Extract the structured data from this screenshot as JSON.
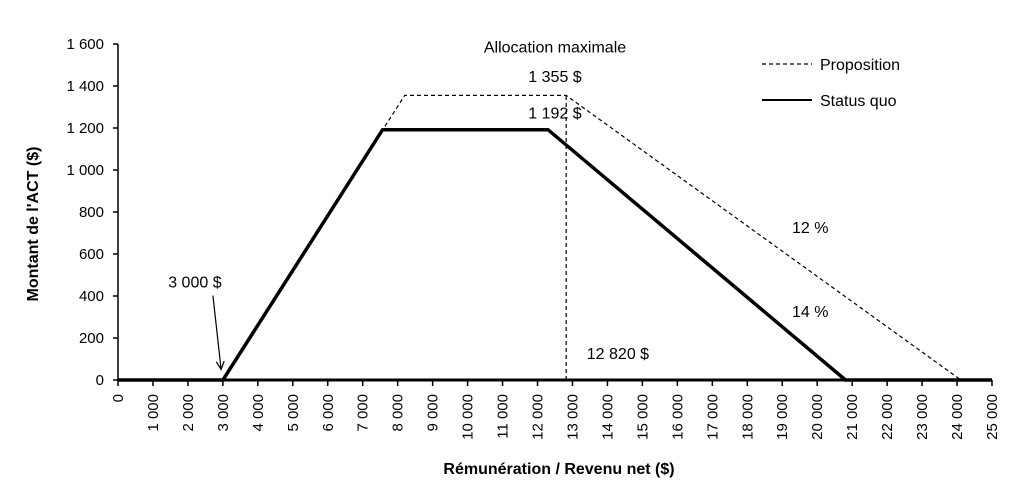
{
  "chart_data": {
    "type": "line",
    "title": "",
    "xlabel": "Rémunération / Revenu net ($)",
    "ylabel": "Montant de l'ACT ($)",
    "xlim": [
      0,
      25000
    ],
    "ylim": [
      0,
      1600
    ],
    "x_ticks": [
      0,
      1000,
      2000,
      3000,
      4000,
      5000,
      6000,
      7000,
      8000,
      9000,
      10000,
      11000,
      12000,
      13000,
      14000,
      15000,
      16000,
      17000,
      18000,
      19000,
      20000,
      21000,
      22000,
      23000,
      24000,
      25000
    ],
    "x_tick_labels": [
      "0",
      "1 000",
      "2 000",
      "3 000",
      "4 000",
      "5 000",
      "6 000",
      "7 000",
      "8 000",
      "9 000",
      "10 000",
      "11 000",
      "12 000",
      "13 000",
      "14 000",
      "15 000",
      "16 000",
      "17 000",
      "18 000",
      "19 000",
      "20 000",
      "21 000",
      "22 000",
      "23 000",
      "24 000",
      "25 000"
    ],
    "y_ticks": [
      0,
      200,
      400,
      600,
      800,
      1000,
      1200,
      1400,
      1600
    ],
    "y_tick_labels": [
      "0",
      "200",
      "400",
      "600",
      "800",
      "1 000",
      "1 200",
      "1 400",
      "1 600"
    ],
    "grid": false,
    "legend_position": "top-right",
    "series": [
      {
        "name": "Proposition",
        "style": "dashed",
        "color": "#000000",
        "x": [
          3000,
          8200,
          12820,
          24110
        ],
        "y": [
          0,
          1355,
          1355,
          0
        ]
      },
      {
        "name": "Status quo",
        "style": "solid",
        "color": "#000000",
        "x": [
          0,
          3000,
          7570,
          12300,
          20810,
          25000
        ],
        "y": [
          0,
          0,
          1192,
          1192,
          0,
          0
        ]
      }
    ],
    "vertical_marker": {
      "x": 12820,
      "y_from": 0,
      "y_to": 1355,
      "style": "dashed"
    },
    "annotations": [
      {
        "text": "Allocation maximale",
        "x": 12500,
        "y": 1560
      },
      {
        "text": "1 355 $",
        "x": 12500,
        "y": 1420
      },
      {
        "text": "1 192 $",
        "x": 12500,
        "y": 1245
      },
      {
        "text": "3 000 $",
        "x": 2200,
        "y": 440,
        "arrow_to": {
          "x": 2950,
          "y": 50
        }
      },
      {
        "text": "12 820 $",
        "x": 14300,
        "y": 100
      },
      {
        "text": "12 %",
        "x": 19800,
        "y": 700
      },
      {
        "text": "14 %",
        "x": 19800,
        "y": 300
      }
    ]
  }
}
